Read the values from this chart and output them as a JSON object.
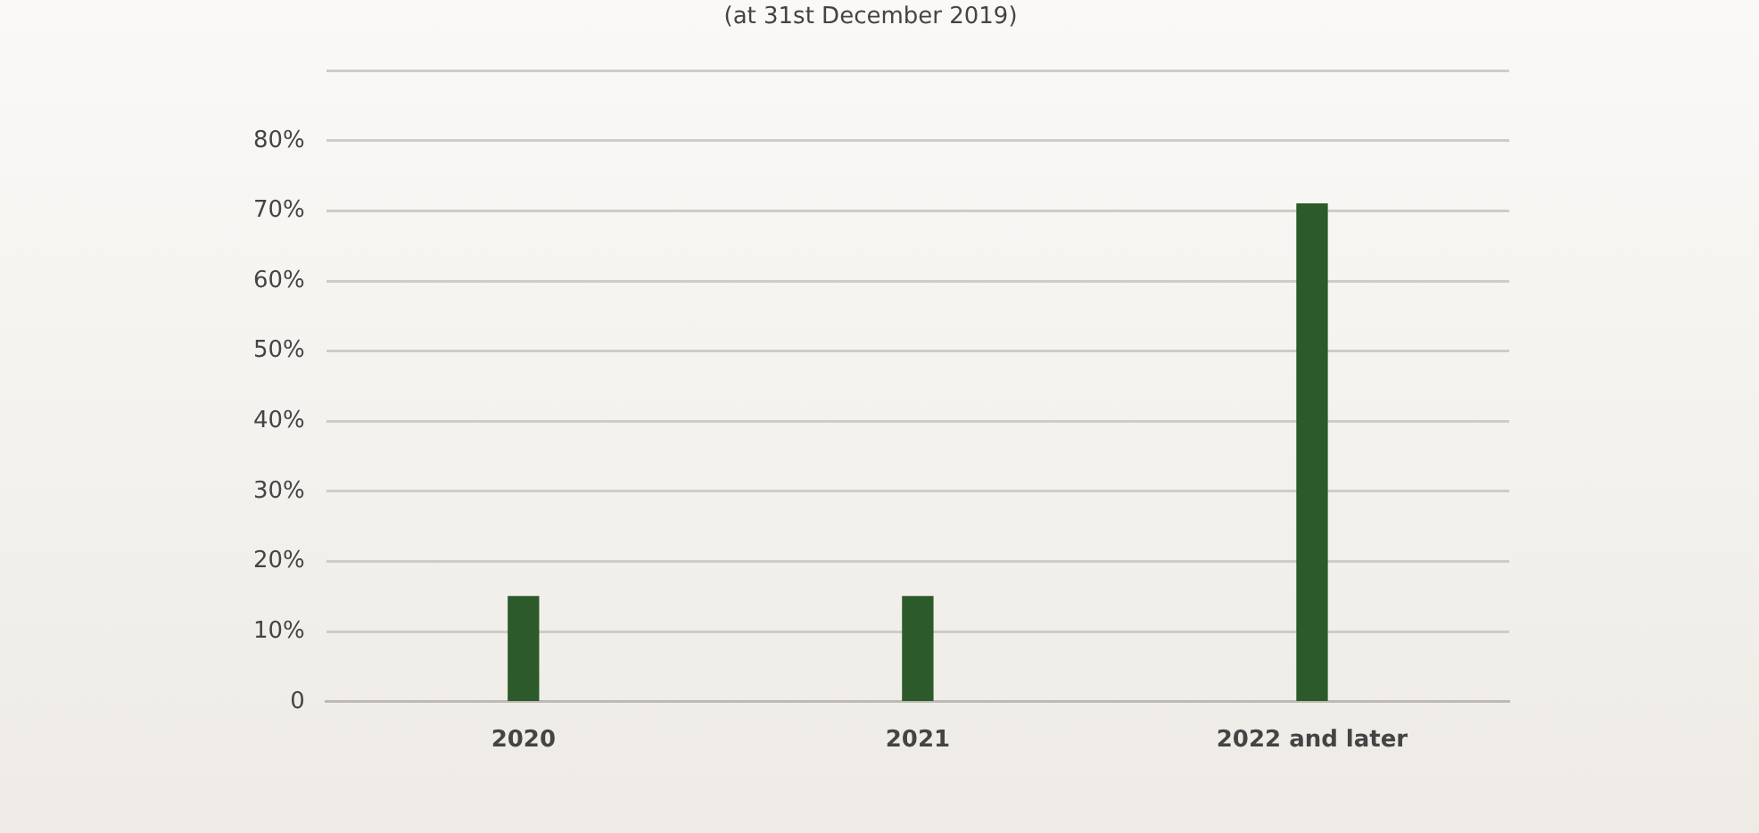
{
  "chart_data": {
    "type": "bar",
    "title": "(at 31st December 2019)",
    "categories": [
      "2020",
      "2021",
      "2022 and later"
    ],
    "values": [
      15,
      15,
      71
    ],
    "color": "#2d5a2b",
    "ylim": [
      0,
      90
    ],
    "yticks": [
      {
        "value": 0,
        "label": "0"
      },
      {
        "value": 10,
        "label": "10%"
      },
      {
        "value": 20,
        "label": "20%"
      },
      {
        "value": 30,
        "label": "30%"
      },
      {
        "value": 40,
        "label": "40%"
      },
      {
        "value": 50,
        "label": "50%"
      },
      {
        "value": 60,
        "label": "60%"
      },
      {
        "value": 70,
        "label": "70%"
      },
      {
        "value": 80,
        "label": "80%"
      },
      {
        "value": 90,
        "label": null
      }
    ],
    "grid": "y"
  }
}
